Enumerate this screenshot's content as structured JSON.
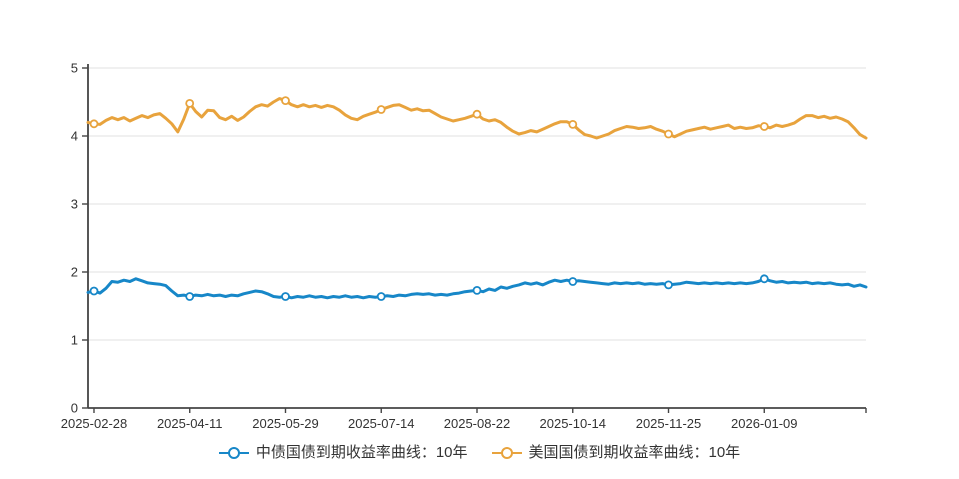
{
  "chart_data": {
    "type": "line",
    "title": "",
    "xlabel": "",
    "ylabel": "",
    "ylim": [
      0,
      5
    ],
    "y_ticks": [
      0,
      1,
      2,
      3,
      4,
      5
    ],
    "grid": "on",
    "legend_position": "bottom",
    "axis_color": "#444444",
    "grid_color": "#e0e0e0",
    "label_color": "#333333",
    "x_tick_labels": [
      "2025-02-28",
      "2025-04-11",
      "2025-05-29",
      "2025-07-14",
      "2025-08-22",
      "2025-10-14",
      "2025-11-25",
      "2026-01-09"
    ],
    "x_tick_indices": [
      1,
      17,
      33,
      49,
      65,
      81,
      97,
      113
    ],
    "marker_indices": [
      1,
      17,
      33,
      49,
      65,
      81,
      97,
      113
    ],
    "series": [
      {
        "name": "中债国债到期收益率曲线：10年",
        "color": "#1787c8",
        "values": [
          1.7,
          1.72,
          1.69,
          1.76,
          1.86,
          1.85,
          1.88,
          1.86,
          1.9,
          1.87,
          1.84,
          1.83,
          1.82,
          1.8,
          1.72,
          1.65,
          1.66,
          1.64,
          1.66,
          1.65,
          1.67,
          1.65,
          1.66,
          1.64,
          1.66,
          1.65,
          1.68,
          1.7,
          1.72,
          1.71,
          1.68,
          1.64,
          1.63,
          1.64,
          1.62,
          1.64,
          1.63,
          1.65,
          1.63,
          1.64,
          1.62,
          1.64,
          1.63,
          1.65,
          1.63,
          1.64,
          1.62,
          1.64,
          1.63,
          1.64,
          1.65,
          1.64,
          1.66,
          1.65,
          1.67,
          1.68,
          1.67,
          1.68,
          1.66,
          1.67,
          1.66,
          1.68,
          1.69,
          1.71,
          1.72,
          1.73,
          1.71,
          1.75,
          1.73,
          1.78,
          1.76,
          1.79,
          1.81,
          1.84,
          1.82,
          1.84,
          1.81,
          1.85,
          1.88,
          1.86,
          1.88,
          1.86,
          1.87,
          1.86,
          1.85,
          1.84,
          1.83,
          1.82,
          1.84,
          1.83,
          1.84,
          1.83,
          1.84,
          1.82,
          1.83,
          1.82,
          1.83,
          1.81,
          1.82,
          1.83,
          1.85,
          1.84,
          1.83,
          1.84,
          1.83,
          1.84,
          1.83,
          1.84,
          1.83,
          1.84,
          1.83,
          1.84,
          1.86,
          1.9,
          1.87,
          1.85,
          1.86,
          1.84,
          1.85,
          1.84,
          1.85,
          1.83,
          1.84,
          1.83,
          1.84,
          1.82,
          1.81,
          1.82,
          1.79,
          1.81,
          1.78
        ]
      },
      {
        "name": "美国国债到期收益率曲线：10年",
        "color": "#e8a33d",
        "values": [
          4.2,
          4.18,
          4.17,
          4.23,
          4.27,
          4.24,
          4.27,
          4.22,
          4.26,
          4.3,
          4.27,
          4.31,
          4.33,
          4.26,
          4.18,
          4.06,
          4.25,
          4.48,
          4.36,
          4.28,
          4.38,
          4.37,
          4.27,
          4.24,
          4.29,
          4.23,
          4.28,
          4.36,
          4.43,
          4.46,
          4.44,
          4.5,
          4.55,
          4.52,
          4.46,
          4.43,
          4.46,
          4.43,
          4.45,
          4.42,
          4.45,
          4.43,
          4.38,
          4.31,
          4.26,
          4.24,
          4.29,
          4.32,
          4.35,
          4.39,
          4.42,
          4.45,
          4.46,
          4.42,
          4.38,
          4.4,
          4.37,
          4.38,
          4.33,
          4.28,
          4.25,
          4.22,
          4.24,
          4.26,
          4.29,
          4.32,
          4.25,
          4.22,
          4.24,
          4.2,
          4.13,
          4.07,
          4.03,
          4.05,
          4.08,
          4.06,
          4.1,
          4.14,
          4.18,
          4.21,
          4.21,
          4.17,
          4.09,
          4.02,
          4.0,
          3.97,
          4.0,
          4.03,
          4.08,
          4.11,
          4.14,
          4.13,
          4.11,
          4.12,
          4.14,
          4.1,
          4.07,
          4.03,
          3.99,
          4.03,
          4.07,
          4.09,
          4.11,
          4.13,
          4.1,
          4.12,
          4.14,
          4.16,
          4.11,
          4.13,
          4.11,
          4.12,
          4.15,
          4.14,
          4.12,
          4.16,
          4.14,
          4.16,
          4.19,
          4.25,
          4.3,
          4.3,
          4.27,
          4.29,
          4.26,
          4.28,
          4.25,
          4.21,
          4.12,
          4.02,
          3.97
        ]
      }
    ]
  }
}
